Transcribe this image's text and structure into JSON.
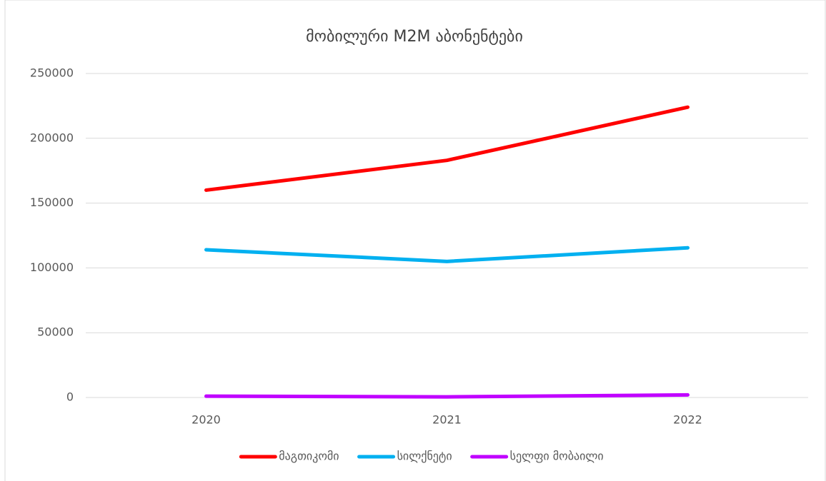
{
  "chart_data": {
    "type": "line",
    "title": "მობილური M2M აბონენტები",
    "categories": [
      "2020",
      "2021",
      "2022"
    ],
    "series": [
      {
        "name": "მაგთიკომი",
        "color": "#ff0000",
        "values": [
          160000,
          183000,
          224000
        ]
      },
      {
        "name": "სილქნეტი",
        "color": "#00b0f0",
        "values": [
          114000,
          105000,
          115500
        ]
      },
      {
        "name": "სელფი მობაილი",
        "color": "#c000ff",
        "values": [
          1000,
          500,
          2000
        ]
      }
    ],
    "ylim": [
      0,
      250000
    ],
    "yticks": [
      0,
      50000,
      100000,
      150000,
      200000,
      250000
    ],
    "grid": true,
    "legend": "bottom"
  }
}
